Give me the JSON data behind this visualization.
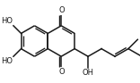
{
  "bg_color": "#ffffff",
  "line_color": "#1a1a1a",
  "line_width": 1.1,
  "fig_width": 1.56,
  "fig_height": 0.93,
  "dpi": 100,
  "xlim": [
    0,
    156
  ],
  "ylim": [
    0,
    93
  ]
}
